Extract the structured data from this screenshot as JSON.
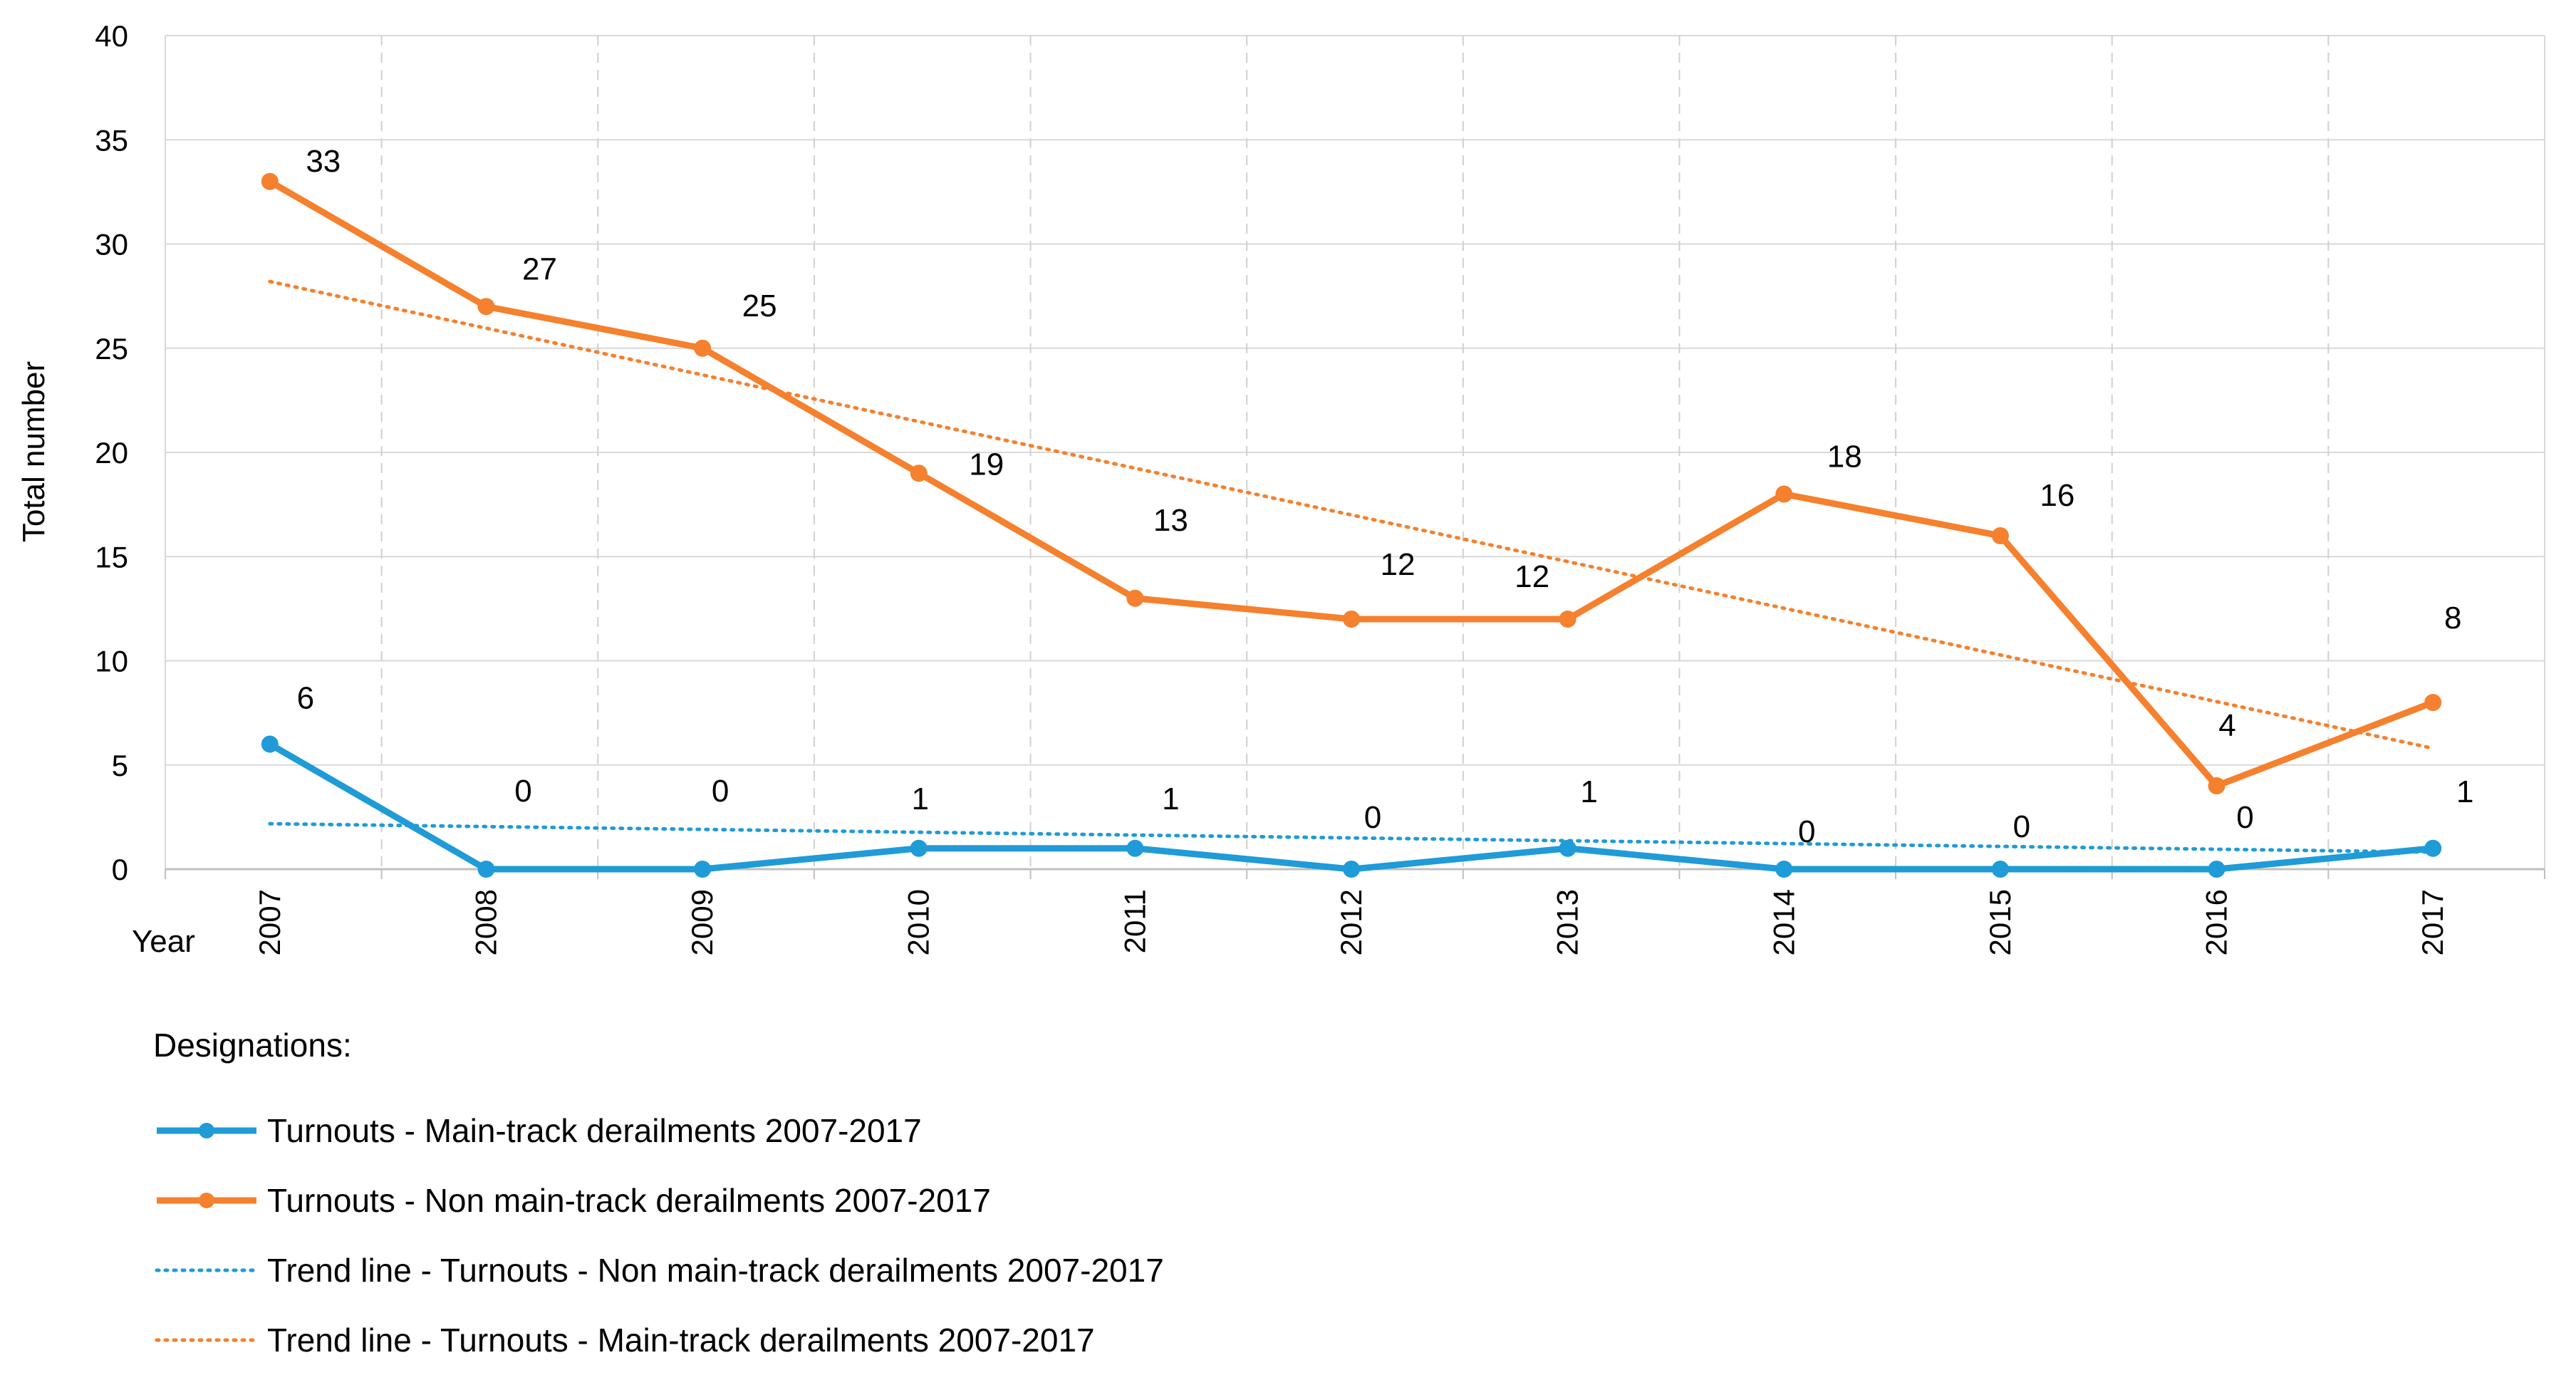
{
  "chart_data": {
    "type": "line",
    "title": "",
    "xlabel": "Year",
    "ylabel": "Total number",
    "categories": [
      "2007",
      "2008",
      "2009",
      "2010",
      "2011",
      "2012",
      "2013",
      "2014",
      "2015",
      "2016",
      "2017"
    ],
    "ylim": [
      0,
      40
    ],
    "yticks": [
      0,
      5,
      10,
      15,
      20,
      25,
      30,
      35,
      40
    ],
    "grid": true,
    "series": [
      {
        "name": "Turnouts - Main-track derailments 2007-2017",
        "style": "solid-markers",
        "color": "#1f9bd7",
        "values": [
          6,
          0,
          0,
          1,
          1,
          0,
          1,
          0,
          0,
          0,
          1
        ],
        "labels": [
          "6",
          "0",
          "0",
          "1",
          "1",
          "0",
          "1",
          "0",
          "0",
          "0",
          "1"
        ]
      },
      {
        "name": "Turnouts - Non main-track derailments 2007-2017",
        "style": "solid-markers",
        "color": "#f5802d",
        "values": [
          33,
          27,
          25,
          19,
          13,
          12,
          12,
          18,
          16,
          4,
          8
        ],
        "labels": [
          "33",
          "27",
          "25",
          "19",
          "13",
          "12",
          "12",
          "18",
          "16",
          "4",
          "8"
        ]
      },
      {
        "name": "Trend line - Turnouts - Non main-track derailments 2007-2017",
        "style": "dotted",
        "color": "#1f9bd7",
        "trend": [
          2.18,
          0.82
        ]
      },
      {
        "name": "Trend line - Turnouts - Main-track derailments 2007-2017",
        "style": "dotted",
        "color": "#f5802d",
        "trend": [
          28.2,
          5.8
        ]
      }
    ]
  },
  "legend": {
    "title": "Designations:"
  }
}
